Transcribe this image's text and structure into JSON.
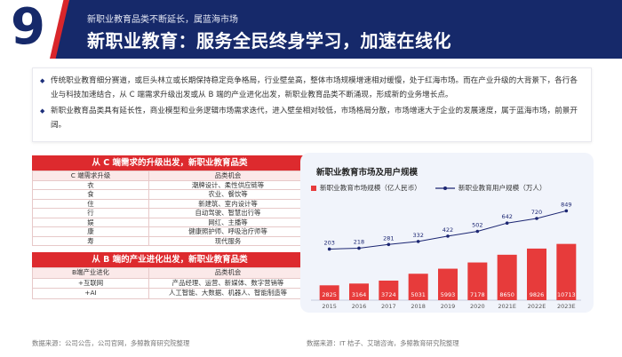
{
  "header": {
    "section_number": "9",
    "subtitle": "新职业教育品类不断延长，属蓝海市场",
    "title": "新职业教育：服务全民终身学习，加速在线化"
  },
  "intro": {
    "bullets": [
      "传统职业教育细分赛道，或巨头林立或长期保持稳定竞争格局，行业壁垒高，整体市场规模增速相对缓慢，处于红海市场。而在产业升级的大背景下，各行各业与科技加速结合，从 C 端需求升级出发或从 B 端的产业进化出发，新职业教育品类不断涌现，形成新的业务增长点。",
      "新职业教育品类具有延长性，商业模型和业务逻辑市场需求迭代，进入壁垒相对较低，市场格局分散，市场增速大于企业的发展速度，属于蓝海市场，前景开阔。"
    ]
  },
  "table_c": {
    "heading": "从 C 端需求的升级出发，新职业教育品类",
    "col1": "C 端需求升级",
    "col2": "品类机会",
    "rows": [
      {
        "need": "衣",
        "chance": "潮牌设计、柔性供应链等"
      },
      {
        "need": "食",
        "chance": "农业、餐饮等"
      },
      {
        "need": "住",
        "chance": "新建筑、室内设计等"
      },
      {
        "need": "行",
        "chance": "自动驾驶、智慧出行等"
      },
      {
        "need": "娱",
        "chance": "网红、主播等"
      },
      {
        "need": "康",
        "chance": "健康照护师、呼吸治疗师等"
      },
      {
        "need": "寿",
        "chance": "现代服务"
      }
    ]
  },
  "table_b": {
    "heading": "从 B 端的产业进化出发，新职业教育品类",
    "col1": "B端产业进化",
    "col2": "品类机会",
    "rows": [
      {
        "need": "+互联网",
        "chance": "产品经理、运营、新媒体、数字营销等"
      },
      {
        "need": "+AI",
        "chance": "人工智能、大数据、机器人、智能制造等"
      }
    ]
  },
  "source_left": "数据来源：公司公告，公司官网，多鲸教育研究院整理",
  "source_right": "数据来源：IT 桔子、艾瑞咨询，多鲸教育研究院整理",
  "chart_data": {
    "type": "bar",
    "title": "新职业教育市场及用户规模",
    "categories": [
      "2015",
      "2016",
      "2017",
      "2018",
      "2019",
      "2020",
      "2021E",
      "2022E",
      "2023E"
    ],
    "series": [
      {
        "name": "新职业教育市场规模（亿人民币）",
        "type": "bar",
        "color": "#e73b3b",
        "values": [
          2825,
          3164,
          3724,
          5031,
          5993,
          7178,
          8650,
          9826,
          10713
        ]
      },
      {
        "name": "新职业教育用户规模（万人）",
        "type": "line",
        "color": "#1c2672",
        "values": [
          203,
          218,
          281,
          332,
          422,
          502,
          642,
          720,
          849
        ]
      }
    ],
    "grid": false,
    "legend": "top"
  }
}
